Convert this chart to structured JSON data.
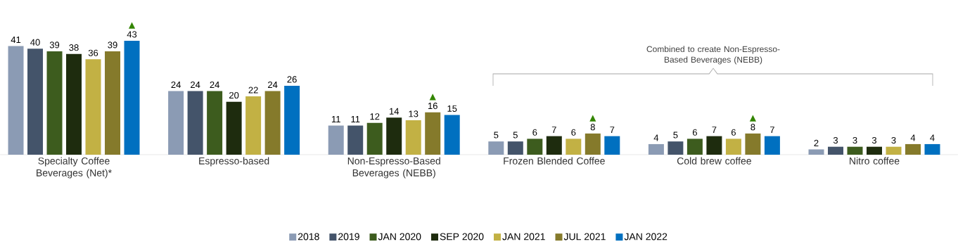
{
  "chart_data": {
    "type": "bar",
    "categories": [
      "Specialty Coffee Beverages (Net)*",
      "Espresso-based",
      "Non-Espresso-Based Beverages (NEBB)",
      "Frozen Blended Coffee",
      "Cold brew coffee",
      "Nitro coffee"
    ],
    "series": [
      {
        "name": "2018",
        "color": "#8b9bb4",
        "values": [
          41,
          24,
          11,
          5,
          4,
          2
        ]
      },
      {
        "name": "2019",
        "color": "#44546a",
        "values": [
          40,
          24,
          11,
          5,
          5,
          3
        ]
      },
      {
        "name": "JAN 2020",
        "color": "#3d5c1e",
        "values": [
          39,
          24,
          12,
          6,
          6,
          3
        ]
      },
      {
        "name": "SEP 2020",
        "color": "#1e2c0e",
        "values": [
          38,
          20,
          14,
          7,
          7,
          3
        ]
      },
      {
        "name": "JAN 2021",
        "color": "#c2b144",
        "values": [
          36,
          22,
          13,
          6,
          6,
          3
        ]
      },
      {
        "name": "JUL 2021",
        "color": "#857a2b",
        "values": [
          39,
          24,
          16,
          8,
          8,
          4
        ]
      },
      {
        "name": "JAN 2022",
        "color": "#0070c0",
        "values": [
          43,
          26,
          15,
          7,
          7,
          4
        ]
      }
    ],
    "data_labels": true,
    "legend": "bottom",
    "annotations": [
      "▲",
      "▲",
      "▲",
      "▲",
      "Combined to create Non-Espresso-Based Beverages (NEBB)"
    ]
  }
}
